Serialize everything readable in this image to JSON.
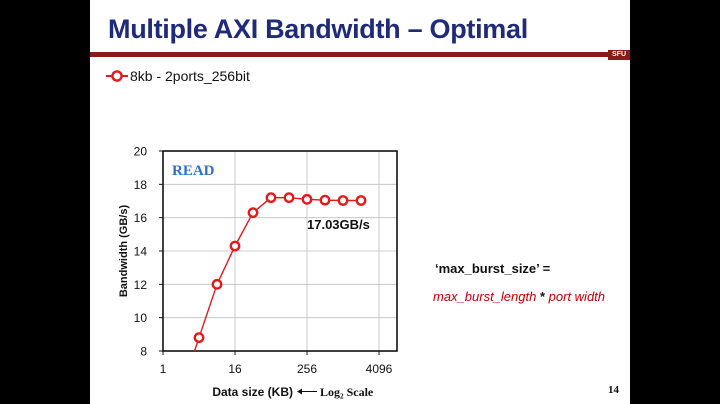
{
  "slide": {
    "title": "Multiple AXI Bandwidth – Optimal",
    "brand": "SFU",
    "page_number": "14",
    "formula_line1": "‘max_burst_size’ =",
    "formula_term1": "max_burst_length",
    "formula_op": "*",
    "formula_term2": "port width"
  },
  "chart_data": {
    "type": "line",
    "title": "",
    "panel_label": "READ",
    "annotation": "17.03GB/s",
    "xlabel": "Data size (KB)",
    "xlabel_note": "Log₂ Scale",
    "ylabel": "Bandwidth (GB/s)",
    "x_scale": "log2",
    "xlim": [
      1,
      8192
    ],
    "ylim": [
      8,
      20
    ],
    "x_ticks": [
      1,
      16,
      256,
      4096
    ],
    "y_ticks": [
      8,
      10,
      12,
      14,
      16,
      18,
      20
    ],
    "grid": true,
    "legend_position": "top-left",
    "colors": {
      "series": "#e41a1c",
      "panel_label": "#2f6fd0",
      "grid": "#bfbfbf"
    },
    "series": [
      {
        "name": "8kb - 2ports_256bit",
        "x": [
          4,
          8,
          16,
          32,
          64,
          128,
          256,
          512,
          1024,
          2048
        ],
        "y": [
          8.8,
          12.0,
          14.3,
          16.3,
          17.2,
          17.2,
          17.1,
          17.05,
          17.03,
          17.03
        ]
      }
    ]
  }
}
